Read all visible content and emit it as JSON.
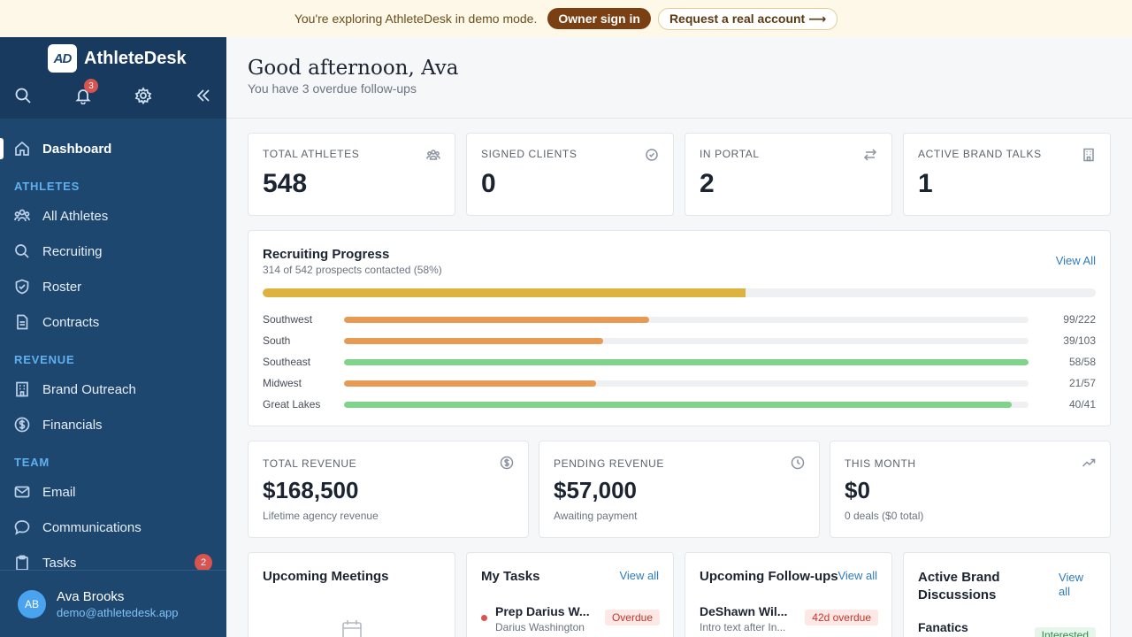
{
  "banner": {
    "message": "You're exploring AthleteDesk in demo mode.",
    "owner_sign_in": "Owner sign in",
    "request_account": "Request a real account ⟶"
  },
  "sidebar": {
    "brand_logo": "AD",
    "brand_name": "AthleteDesk",
    "notifications_count": "3",
    "items": {
      "dashboard": "Dashboard",
      "section_athletes": "ATHLETES",
      "all_athletes": "All Athletes",
      "recruiting": "Recruiting",
      "roster": "Roster",
      "contracts": "Contracts",
      "section_revenue": "REVENUE",
      "brand_outreach": "Brand Outreach",
      "financials": "Financials",
      "section_team": "TEAM",
      "email": "Email",
      "communications": "Communications",
      "tasks": "Tasks",
      "tasks_badge": "2"
    },
    "user": {
      "initials": "AB",
      "name": "Ava Brooks",
      "email": "demo@athletedesk.app"
    }
  },
  "header": {
    "greeting": "Good afternoon, Ava",
    "subtitle": "You have 3 overdue follow-ups"
  },
  "stats": [
    {
      "label": "TOTAL ATHLETES",
      "value": "548",
      "icon": "team-icon"
    },
    {
      "label": "SIGNED CLIENTS",
      "value": "0",
      "icon": "check-circle-icon"
    },
    {
      "label": "IN PORTAL",
      "value": "2",
      "icon": "swap-icon"
    },
    {
      "label": "ACTIVE BRAND TALKS",
      "value": "1",
      "icon": "building-icon"
    }
  ],
  "recruiting": {
    "title": "Recruiting Progress",
    "subtitle": "314 of 542 prospects contacted (58%)",
    "view_all": "View All",
    "overall_progress": 0.58,
    "regions": [
      {
        "name": "Southwest",
        "value": "99/222",
        "progress": 0.446,
        "color": "#e89a55"
      },
      {
        "name": "South",
        "value": "39/103",
        "progress": 0.379,
        "color": "#e89a55"
      },
      {
        "name": "Southeast",
        "value": "58/58",
        "progress": 1.0,
        "color": "#7dd48a"
      },
      {
        "name": "Midwest",
        "value": "21/57",
        "progress": 0.368,
        "color": "#e89a55"
      },
      {
        "name": "Great Lakes",
        "value": "40/41",
        "progress": 0.976,
        "color": "#7dd48a"
      }
    ]
  },
  "revenue": [
    {
      "label": "TOTAL REVENUE",
      "value": "$168,500",
      "note": "Lifetime agency revenue",
      "icon": "dollar-icon"
    },
    {
      "label": "PENDING REVENUE",
      "value": "$57,000",
      "note": "Awaiting payment",
      "icon": "clock-icon"
    },
    {
      "label": "THIS MONTH",
      "value": "$0",
      "note": "0 deals ($0 total)",
      "icon": "trend-up-icon"
    }
  ],
  "panels": {
    "meetings": {
      "title": "Upcoming Meetings"
    },
    "tasks": {
      "title": "My Tasks",
      "link": "View all",
      "item": {
        "name": "Prep Darius W...",
        "sub": "Darius Washington",
        "status": "Overdue"
      }
    },
    "followups": {
      "title": "Upcoming Follow-ups",
      "link": "View all",
      "item": {
        "name": "DeShawn Wil...",
        "sub": "Intro text after In...",
        "status": "42d overdue"
      }
    },
    "brands": {
      "title_line1": "Active Brand",
      "title_line2": "Discussions",
      "link_line1": "View",
      "link_line2": "all",
      "item": {
        "name": "Fanatics",
        "status": "Interested"
      }
    }
  }
}
